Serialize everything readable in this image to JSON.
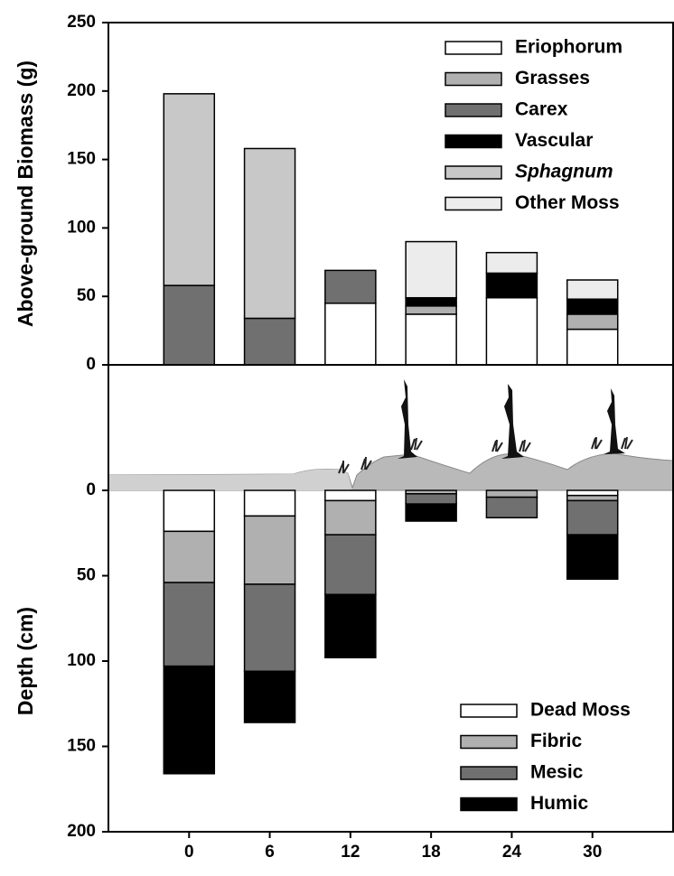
{
  "chart_data": [
    {
      "type": "stacked-bar",
      "y_label": "Above-ground Biomass (g)",
      "ylim": [
        0,
        250
      ],
      "yticks": [
        0,
        50,
        100,
        150,
        200,
        250
      ],
      "legend": "upper right",
      "series": [
        {
          "name": "Eriophorum",
          "color": "#ffffff",
          "values": [
            0,
            0,
            45,
            37,
            49,
            26
          ]
        },
        {
          "name": "Grasses",
          "color": "#b0b0b0",
          "values": [
            0,
            0,
            0,
            6,
            0,
            11
          ]
        },
        {
          "name": "Carex",
          "color": "#707070",
          "values": [
            58,
            34,
            24,
            0,
            0,
            0
          ]
        },
        {
          "name": "Vascular",
          "color": "#000000",
          "values": [
            0,
            0,
            0,
            6,
            18,
            11
          ]
        },
        {
          "name": "Sphagnum",
          "color": "#c8c8c8",
          "values": [
            140,
            124,
            0,
            0,
            0,
            0
          ]
        },
        {
          "name": "Other Moss",
          "color": "#ececec",
          "values": [
            0,
            0,
            0,
            41,
            15,
            14
          ]
        }
      ]
    },
    {
      "type": "stacked-bar",
      "y_label": "Depth (cm)",
      "inverted_y": true,
      "categories": [
        "0",
        "6",
        "12",
        "18",
        "24",
        "30"
      ],
      "ylim": [
        0,
        200
      ],
      "yticks": [
        0,
        50,
        100,
        150,
        200
      ],
      "legend": "lower right",
      "series": [
        {
          "name": "Dead Moss",
          "color": "#ffffff",
          "values": [
            24,
            15,
            6,
            0,
            0,
            3
          ]
        },
        {
          "name": "Fibric",
          "color": "#b0b0b0",
          "values": [
            30,
            40,
            20,
            2,
            4,
            3
          ]
        },
        {
          "name": "Mesic",
          "color": "#707070",
          "values": [
            49,
            51,
            35,
            6,
            12,
            20
          ]
        },
        {
          "name": "Humic",
          "color": "#000000",
          "values": [
            63,
            30,
            37,
            10,
            0,
            26
          ]
        }
      ]
    }
  ]
}
